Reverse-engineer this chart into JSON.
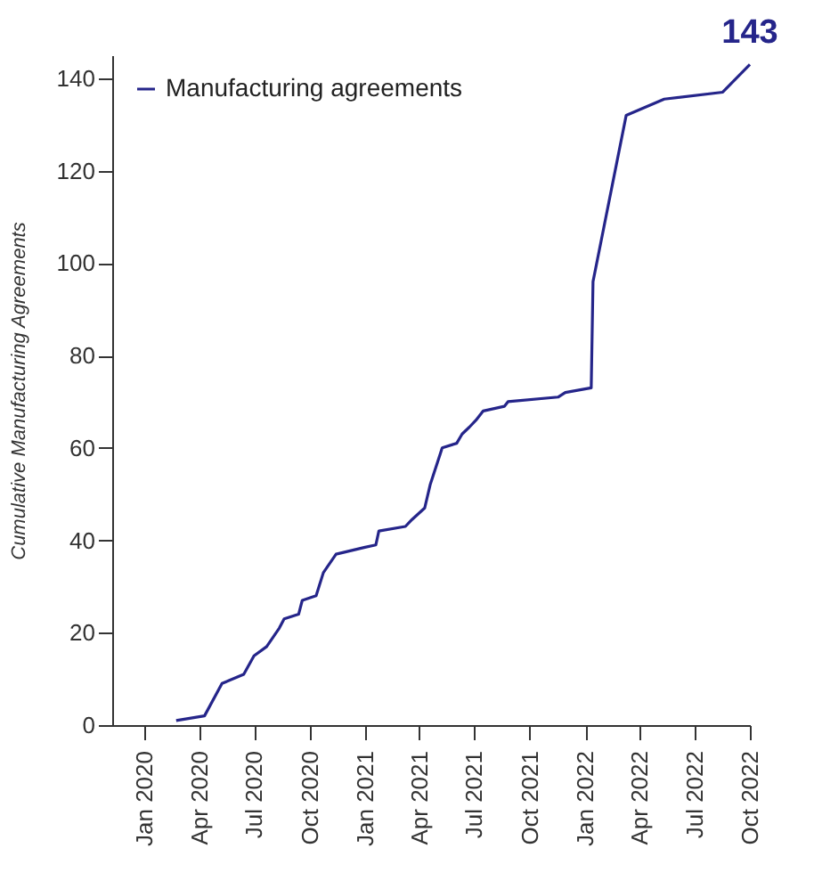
{
  "chart_data": {
    "type": "line",
    "ylabel": "Cumulative Manufacturing  Agreements",
    "legend": "top left",
    "marker": "none",
    "line_style": "solid",
    "grid": false,
    "x": [
      "2020-02-23",
      "2020-04-10",
      "2020-05-09",
      "2020-06-14",
      "2020-07-01",
      "2020-07-22",
      "2020-08-12",
      "2020-08-20",
      "2020-09-13",
      "2020-09-19",
      "2020-10-12",
      "2020-10-24",
      "2020-11-14",
      "2021-01-01",
      "2021-01-19",
      "2021-01-24",
      "2021-03-09",
      "2021-03-20",
      "2021-04-10",
      "2021-04-19",
      "2021-05-09",
      "2021-06-02",
      "2021-06-11",
      "2021-06-23",
      "2021-07-04",
      "2021-07-16",
      "2021-08-20",
      "2021-08-26",
      "2021-11-17",
      "2021-11-29",
      "2022-01-11",
      "2022-01-14",
      "2022-03-10",
      "2022-05-12",
      "2022-08-17",
      "2022-10-01"
    ],
    "series": [
      {
        "name": "Manufacturing agreements",
        "color": "#25258a",
        "values": [
          1,
          2,
          9,
          11,
          15,
          17,
          21,
          23,
          24,
          27,
          28,
          33,
          37,
          38.5,
          39,
          42,
          43,
          44.5,
          47,
          52,
          60,
          61,
          63,
          64.5,
          66,
          68,
          69,
          70,
          71,
          72,
          73,
          96,
          132,
          135.5,
          137,
          143
        ]
      }
    ],
    "xlim": [
      "2019-11-09",
      "2022-10-01"
    ],
    "xticks": [
      {
        "value": "2020-01",
        "label": "Jan 2020"
      },
      {
        "value": "2020-04",
        "label": "Apr 2020"
      },
      {
        "value": "2020-07",
        "label": "Jul 2020"
      },
      {
        "value": "2020-10",
        "label": "Oct 2020"
      },
      {
        "value": "2021-01",
        "label": "Jan 2021"
      },
      {
        "value": "2021-04",
        "label": "Apr 2021"
      },
      {
        "value": "2021-07",
        "label": "Jul 2021"
      },
      {
        "value": "2021-10",
        "label": "Oct 2021"
      },
      {
        "value": "2022-01",
        "label": "Jan 2022"
      },
      {
        "value": "2022-04",
        "label": "Apr 2022"
      },
      {
        "value": "2022-07",
        "label": "Jul 2022"
      },
      {
        "value": "2022-10",
        "label": "Oct 2022"
      }
    ],
    "ylim": [
      0,
      145
    ],
    "yticks": [
      0,
      20,
      40,
      60,
      80,
      100,
      120,
      140
    ],
    "annotations": [
      {
        "text": "143",
        "x": "2022-10-01",
        "y": 143
      }
    ]
  }
}
